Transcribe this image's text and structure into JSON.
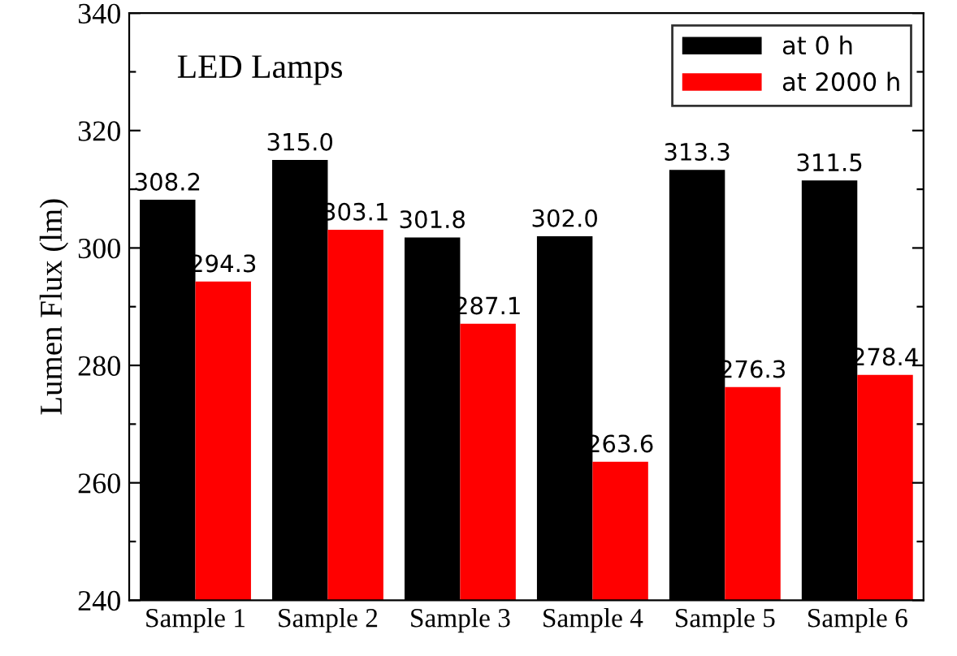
{
  "chart_data": {
    "type": "bar",
    "title": "LED Lamps",
    "ylabel": "Lumen Flux (lm)",
    "categories": [
      "Sample 1",
      "Sample 2",
      "Sample 3",
      "Sample 4",
      "Sample 5",
      "Sample 6"
    ],
    "series": [
      {
        "name": "at 0 h",
        "color": "#000000",
        "values": [
          308.2,
          315.0,
          301.8,
          302.0,
          313.3,
          311.5
        ],
        "value_labels": [
          "308.2",
          "315.0",
          "301.8",
          "302.0",
          "313.3",
          "311.5"
        ]
      },
      {
        "name": "at 2000 h",
        "color": "#ff0000",
        "values": [
          294.3,
          303.1,
          287.1,
          263.6,
          276.3,
          278.4
        ],
        "value_labels": [
          "294.3",
          "303.1",
          "287.1",
          "263.6",
          "276.3",
          "278.4"
        ]
      }
    ],
    "ylim": [
      240,
      340
    ],
    "yticks": [
      240,
      {
        "value": 250,
        "label": null
      },
      260,
      {
        "value": 270,
        "label": null
      },
      280,
      {
        "value": 290,
        "label": null
      },
      300,
      {
        "value": 310,
        "label": null
      },
      320,
      {
        "value": 330,
        "label": null
      },
      340
    ],
    "grid": false,
    "legend": "top right"
  }
}
